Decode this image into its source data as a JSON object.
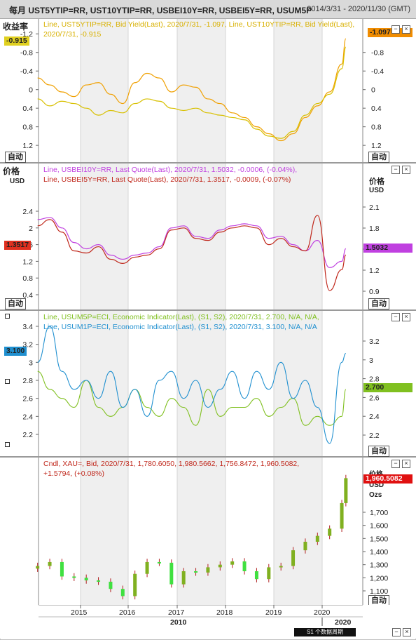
{
  "header": {
    "title": "每月 UST5YTIP=RR, UST10YTIP=RR, USBEI10Y=RR, USBEI5Y=RR, USUM5P",
    "range": "2014/3/31 - 2020/11/30 (GMT)"
  },
  "controls": {
    "auto_label": "自动",
    "minimize": "−",
    "close": "×"
  },
  "panel1": {
    "title": "收益率",
    "legend": [
      "Line, UST5YTIP=RR, Bid Yield(Last), 2020/7/31, -1.097, Line, UST10YTIP=RR, Bid Yield(Last),",
      "2020/7/31, -0.915"
    ],
    "left_tag": "-0.915",
    "right_tag": "-1.097",
    "left_tag_color": "#e0d020",
    "right_tag_color": "#f08c00",
    "left_ticks": [
      "-1.2",
      "-0.8",
      "-0.4",
      "0",
      "0.4",
      "0.8",
      "1.2"
    ],
    "right_ticks": [
      "-0.8",
      "-0.4",
      "0",
      "0.4",
      "0.8",
      "1.2"
    ]
  },
  "panel2": {
    "title": "价格",
    "unit": "USD",
    "right_unit_a": "价格",
    "right_unit_b": "USD",
    "legend": [
      "Line, USBEI10Y=RR, Last Quote(Last), 2020/7/31, 1.5032, -0.0006, (-0.04%),",
      "Line, USBEI5Y=RR, Last Quote(Last), 2020/7/31, 1.3517, -0.0009, (-0.07%)"
    ],
    "left_tag": "1.3517",
    "right_tag": "1.5032",
    "left_tag_color": "#e03020",
    "right_tag_color": "#c040e0",
    "left_ticks": [
      "2.4",
      "2",
      "1.6",
      "1.2",
      "0.8",
      "0.4"
    ],
    "right_ticks": [
      "2.1",
      "1.8",
      "1.5",
      "1.2",
      "0.9"
    ]
  },
  "panel3": {
    "legend": [
      "Line, USUM5P=ECI, Economic Indicator(Last), (S1, S2), 2020/7/31, 2.700, N/A, N/A,",
      "Line, USUM1P=ECI, Economic Indicator(Last), (S1, S2), 2020/7/31, 3.100, N/A, N/A"
    ],
    "left_tag": "3.100",
    "right_tag": "2.700",
    "left_tag_color": "#2090d0",
    "right_tag_color": "#80c020",
    "left_ticks": [
      "3.4",
      "3.2",
      "3",
      "2.8",
      "2.6",
      "2.4",
      "2.2"
    ],
    "right_ticks": [
      "3.2",
      "3",
      "2.8",
      "2.6",
      "2.4",
      "2.2"
    ]
  },
  "panel4": {
    "legend": [
      "Cndl, XAU=, Bid, 2020/7/31, 1,780.6050, 1,980.5662, 1,756.8472, 1,960.5082,",
      "+1.5794, (+0.08%)"
    ],
    "right_unit_a": "价格",
    "right_unit_b": "USD",
    "right_unit_c": "Ozs",
    "right_tag": "1,960.5082",
    "right_tag_color": "#e01010",
    "right_ticks": [
      "1,700",
      "1,600",
      "1,500",
      "1,400",
      "1,300",
      "1,200",
      "1,100"
    ]
  },
  "xaxis": {
    "year_ticks": [
      "2015",
      "2016",
      "2017",
      "2018",
      "2019",
      "2020"
    ],
    "bottom_labels": [
      "2010",
      "2020"
    ],
    "status": "S1 个数据周期"
  },
  "colors": {
    "ust5": "#f0a000",
    "ust10": "#d8c000",
    "bei10": "#c040e0",
    "bei5": "#c0281c",
    "um5": "#80c020",
    "um1": "#2090d0",
    "shade": "#efefef",
    "up": "#80b020",
    "down": "#40e040"
  },
  "chart_data": [
    {
      "type": "line",
      "ylabel": "收益率",
      "x": [
        "2014-03",
        "2014-06",
        "2014-09",
        "2014-12",
        "2015-03",
        "2015-06",
        "2015-09",
        "2015-12",
        "2016-03",
        "2016-06",
        "2016-09",
        "2016-12",
        "2017-03",
        "2017-06",
        "2017-09",
        "2017-12",
        "2018-03",
        "2018-06",
        "2018-09",
        "2018-12",
        "2019-03",
        "2019-06",
        "2019-09",
        "2019-12",
        "2020-03",
        "2020-06",
        "2020-07"
      ],
      "ylim": [
        1.5,
        -1.4
      ],
      "series": [
        {
          "name": "UST5YTIP=RR",
          "values": [
            -0.25,
            -0.1,
            0.05,
            0.15,
            -0.1,
            -0.15,
            0.1,
            0.3,
            -0.15,
            -0.35,
            -0.25,
            0.05,
            -0.1,
            -0.05,
            0.2,
            0.3,
            0.5,
            0.6,
            0.8,
            0.95,
            1.1,
            0.95,
            0.6,
            0.35,
            0.05,
            -0.55,
            -1.097
          ]
        },
        {
          "name": "UST10YTIP=RR",
          "values": [
            0.2,
            0.35,
            0.25,
            0.3,
            0.4,
            0.55,
            0.45,
            0.5,
            0.3,
            0.2,
            0.25,
            0.4,
            0.45,
            0.4,
            0.5,
            0.55,
            0.6,
            0.65,
            0.85,
            1.0,
            1.05,
            0.9,
            0.55,
            0.3,
            0.1,
            -0.45,
            -0.915
          ]
        }
      ]
    },
    {
      "type": "line",
      "ylabel": "价格",
      "x": [
        "2014-03",
        "2014-06",
        "2014-09",
        "2014-12",
        "2015-03",
        "2015-06",
        "2015-09",
        "2015-12",
        "2016-03",
        "2016-06",
        "2016-09",
        "2016-12",
        "2017-03",
        "2017-06",
        "2017-09",
        "2017-12",
        "2018-03",
        "2018-06",
        "2018-09",
        "2018-12",
        "2019-03",
        "2019-06",
        "2019-09",
        "2019-12",
        "2020-03",
        "2020-06",
        "2020-07"
      ],
      "ylim": [
        0.3,
        2.6
      ],
      "series": [
        {
          "name": "USBEI10Y=RR",
          "values": [
            2.2,
            2.25,
            2.0,
            1.65,
            1.5,
            1.6,
            1.35,
            1.25,
            1.35,
            1.4,
            1.55,
            2.0,
            2.05,
            1.8,
            1.75,
            1.95,
            2.05,
            2.1,
            2.05,
            1.75,
            1.8,
            1.6,
            1.45,
            1.7,
            1.05,
            1.2,
            1.5032
          ]
        },
        {
          "name": "USBEI5Y=RR",
          "values": [
            2.05,
            2.2,
            1.9,
            1.45,
            1.4,
            1.55,
            1.25,
            1.15,
            1.3,
            1.35,
            1.5,
            1.95,
            2.0,
            1.75,
            1.7,
            1.9,
            2.0,
            2.05,
            2.0,
            1.6,
            1.75,
            1.55,
            1.45,
            2.3,
            0.5,
            1.0,
            1.3517
          ]
        }
      ]
    },
    {
      "type": "line",
      "x": [
        "2014-03",
        "2014-06",
        "2014-09",
        "2014-12",
        "2015-03",
        "2015-06",
        "2015-09",
        "2015-12",
        "2016-03",
        "2016-06",
        "2016-09",
        "2016-12",
        "2017-03",
        "2017-06",
        "2017-09",
        "2017-12",
        "2018-03",
        "2018-06",
        "2018-09",
        "2018-12",
        "2019-03",
        "2019-06",
        "2019-09",
        "2019-12",
        "2020-03",
        "2020-06",
        "2020-07"
      ],
      "ylim": [
        2.05,
        3.55
      ],
      "series": [
        {
          "name": "USUM5P=ECI",
          "values": [
            2.9,
            2.7,
            2.6,
            2.5,
            2.8,
            2.5,
            2.4,
            2.5,
            2.7,
            2.5,
            2.4,
            2.6,
            2.5,
            2.3,
            2.7,
            2.4,
            2.5,
            2.5,
            2.6,
            2.4,
            2.5,
            2.6,
            2.3,
            2.4,
            2.3,
            2.4,
            2.7
          ]
        },
        {
          "name": "USUM1P=ECI",
          "values": [
            3.0,
            3.4,
            2.9,
            2.7,
            2.8,
            2.6,
            2.9,
            2.5,
            2.7,
            2.4,
            2.8,
            2.9,
            2.6,
            2.8,
            2.5,
            2.7,
            2.9,
            2.6,
            2.9,
            2.7,
            3.0,
            2.6,
            2.8,
            2.5,
            2.1,
            3.0,
            3.1
          ]
        }
      ]
    },
    {
      "type": "candlestick",
      "ylabel": "价格 USD Ozs",
      "ylim": [
        1040,
        2010
      ],
      "x": [
        "2014-03",
        "2014-06",
        "2014-09",
        "2014-12",
        "2015-03",
        "2015-06",
        "2015-09",
        "2015-12",
        "2016-03",
        "2016-06",
        "2016-09",
        "2016-12",
        "2017-03",
        "2017-06",
        "2017-09",
        "2017-12",
        "2018-03",
        "2018-06",
        "2018-09",
        "2018-12",
        "2019-03",
        "2019-06",
        "2019-09",
        "2019-12",
        "2020-03",
        "2020-06",
        "2020-07"
      ],
      "close": [
        1290,
        1320,
        1210,
        1200,
        1180,
        1170,
        1115,
        1060,
        1230,
        1320,
        1315,
        1150,
        1250,
        1240,
        1280,
        1300,
        1325,
        1250,
        1190,
        1280,
        1290,
        1410,
        1475,
        1520,
        1575,
        1770,
        1960.5082
      ]
    }
  ]
}
